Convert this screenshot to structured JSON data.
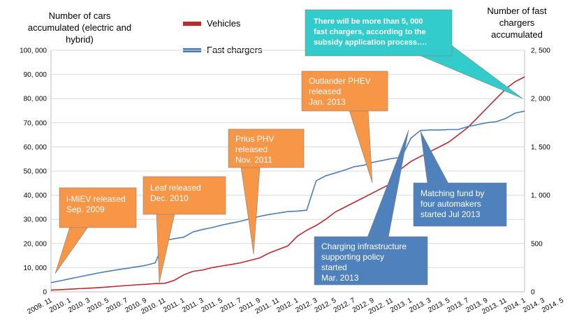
{
  "left_axis_title": [
    "Number of cars",
    "accumulated (electric and",
    "hybrid)"
  ],
  "right_axis_title": [
    "Number of fast",
    "chargers",
    "accumulated"
  ],
  "colors": {
    "vehicles": "#c0282d",
    "chargers": "#4a7ebb",
    "callout": "#f79646",
    "callout_blue": "#4f81bd",
    "callout_teal": "#33cccc",
    "grid": "#d9d9d9"
  },
  "chart_data": {
    "type": "line",
    "left_ylim": [
      0,
      100000
    ],
    "right_ylim": [
      0,
      2500
    ],
    "left_ticks": [
      "0",
      "10, 000",
      "20, 000",
      "30, 000",
      "40, 000",
      "50, 000",
      "60, 000",
      "70, 000",
      "80, 000",
      "90, 000",
      "100, 000"
    ],
    "right_ticks": [
      "0",
      "500",
      "1, 000",
      "1, 500",
      "2, 000",
      "2, 500"
    ],
    "x_tick_labels": [
      "2009. 11",
      "2010. 1",
      "2010. 3",
      "2010. 5",
      "2010. 7",
      "2010. 9",
      "2010. 11",
      "2011. 1",
      "2011. 3",
      "2011. 5",
      "2011. 7",
      "2011. 9",
      "2011. 11",
      "2012. 1",
      "2012. 3",
      "2012. 5",
      "2012. 7",
      "2012. 9",
      "2012. 11",
      "2013. 1",
      "2013. 3",
      "2013. 5",
      "2013. 7",
      "2013. 9",
      "2013. 11",
      "2014. 1",
      "2014. 3",
      "2014. 5"
    ],
    "x_start": "2009-11",
    "grid": true,
    "series": [
      {
        "name": "Vehicles",
        "axis": "left",
        "color": "#c0282d",
        "values": [
          700,
          900,
          1100,
          1300,
          1500,
          1700,
          2000,
          2300,
          2600,
          2900,
          3100,
          3400,
          3500,
          4700,
          7000,
          8500,
          9000,
          10000,
          10700,
          11300,
          12000,
          13000,
          14000,
          16000,
          17500,
          19000,
          23000,
          25500,
          27500,
          30000,
          33000,
          35000,
          37000,
          39000,
          41000,
          43000,
          45000,
          51000,
          54000,
          56000,
          58000,
          60000,
          62000,
          65000,
          68000,
          72000,
          76000,
          80000,
          84000,
          87000,
          89000
        ]
      },
      {
        "name": "Fast chargers",
        "axis": "right",
        "color": "#4a7ebb",
        "values": [
          95,
          115,
          135,
          155,
          175,
          195,
          212,
          228,
          243,
          258,
          274,
          300,
          530,
          550,
          565,
          620,
          645,
          665,
          690,
          710,
          730,
          755,
          780,
          800,
          815,
          830,
          835,
          845,
          1150,
          1200,
          1230,
          1260,
          1295,
          1310,
          1340,
          1360,
          1380,
          1390,
          1590,
          1670,
          1675,
          1675,
          1680,
          1680,
          1710,
          1730,
          1750,
          1760,
          1795,
          1850,
          1870
        ]
      }
    ],
    "annotations": [
      "i-MiEV released Sep. 2009",
      "Leaf released Dec. 2010",
      "Prius PHV released Nov. 2011",
      "Outlander PHEV released Jan. 2013",
      "There will be more than 5, 000 fast chargers, according to the subsidy application process….",
      "Charging infrastructure supporting policy started Mar. 2013",
      "Matching fund by four automakers started Jul 2013"
    ]
  },
  "callouts": {
    "imiev": [
      "i-MiEV released",
      "Sep. 2009"
    ],
    "leaf": [
      "Leaf released",
      "Dec. 2010"
    ],
    "prius": [
      "Prius PHV",
      "released",
      "Nov. 2011"
    ],
    "outlander": [
      "Outlander PHEV",
      "released",
      "Jan. 2013"
    ],
    "teal": [
      "There will be more than 5, 000",
      "fast chargers, according to the",
      "subsidy application process…."
    ],
    "infra": [
      "Charging infrastructure",
      "supporting policy",
      "started",
      "Mar. 2013"
    ],
    "matching": [
      "Matching fund by",
      "four automakers",
      "started Jul 2013"
    ]
  }
}
